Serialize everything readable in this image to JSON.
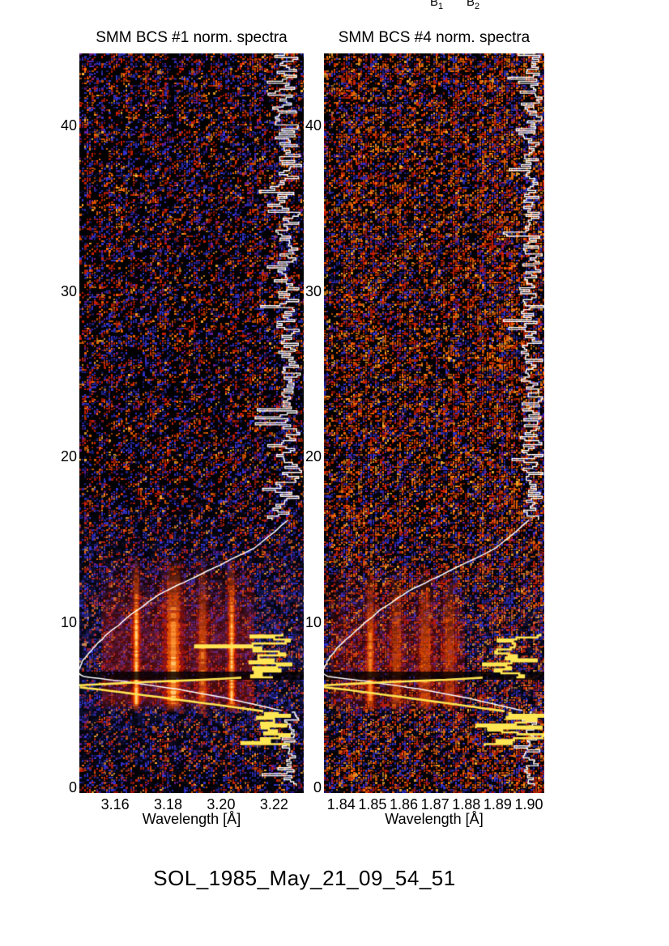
{
  "page": {
    "top_line_labels": [
      {
        "base": "B",
        "sub": "1"
      },
      {
        "base": "B",
        "sub": "2"
      }
    ],
    "footer_title": "SOL_1985_May_21_09_54_51"
  },
  "colors": {
    "page_bg": "#ffffff",
    "text": "#000000",
    "noise_red": "#d42000",
    "noise_orange": "#ff6a00",
    "noise_bright": "#ffb030",
    "noise_blue": "#3535d8",
    "noise_dim_blue": "#1a1a70",
    "noise_purple": "#7a1c9c",
    "haze_blue": "#4444e0",
    "burst_glow": "#c01400",
    "burst_mid": "#ff6a00",
    "burst_core": "#ffd27f",
    "overlay_white": "#ffffff",
    "overlay_yellow": "#ffe653"
  },
  "chart_data": [
    {
      "type": "heatmap",
      "title": "SMM BCS #1 norm. spectra",
      "xlabel": "Wavelength [Å]",
      "x_range": [
        3.1465,
        3.2312
      ],
      "x_ticks": [
        "3.16",
        "3.18",
        "3.20",
        "3.22"
      ],
      "x_tick_values": [
        3.16,
        3.18,
        3.2,
        3.22
      ],
      "y_ticks": [
        "0",
        "10",
        "20",
        "30",
        "40"
      ],
      "y_tick_values": [
        0,
        10,
        20,
        30,
        40
      ],
      "y_range": [
        0,
        44.4
      ],
      "grid": false,
      "legend": "none",
      "noise": {
        "seed": 7,
        "density": 0.48,
        "weights": [
          0.3,
          0.16,
          0.05,
          0.33,
          0.1,
          0.06
        ]
      },
      "blue_haze": {
        "center_t": 8.5,
        "sigma": 4.5,
        "max_alpha": 0.3
      },
      "burst": {
        "t_start": 4.6,
        "t_full": 5.4,
        "t_fade_start": 9.8,
        "t_end": 14.2,
        "strength": 1.0,
        "glow_range_frac": [
          0.1,
          0.78
        ],
        "lines": [
          {
            "wavelength": 3.168,
            "strength": 1.0,
            "width_frac": 0.025
          },
          {
            "wavelength": 3.182,
            "strength": 0.78,
            "width_frac": 0.06
          },
          {
            "wavelength": 3.193,
            "strength": 0.5,
            "width_frac": 0.035
          },
          {
            "wavelength": 3.204,
            "strength": 0.95,
            "width_frac": 0.026
          }
        ]
      },
      "dark_band": {
        "t_start": 6.55,
        "t_end": 7.05
      },
      "overlays": {
        "white_lightcurve": {
          "baseline_frac": 0.93,
          "top_jag": {
            "t_from": 44.4,
            "t_to": 16.2,
            "amp": 0.065
          },
          "decay_points": [
            [
              16.2,
              0.93
            ],
            [
              14.5,
              0.78
            ],
            [
              12.8,
              0.52
            ],
            [
              11.9,
              0.38
            ],
            [
              10.8,
              0.26
            ],
            [
              9.6,
              0.15
            ],
            [
              8.6,
              0.07
            ],
            [
              7.9,
              0.025
            ],
            [
              7.3,
              0.0
            ]
          ],
          "rise_points": [
            [
              6.75,
              0.02
            ],
            [
              6.45,
              0.2
            ],
            [
              6.0,
              0.43
            ],
            [
              5.45,
              0.65
            ],
            [
              5.0,
              0.8
            ],
            [
              4.7,
              0.9
            ]
          ],
          "bottom_jag": {
            "t_from": 4.6,
            "t_to": 0.15,
            "amp": 0.05
          }
        },
        "yellow_curve": {
          "lower_jag": {
            "t_from": 2.55,
            "t_to": 4.55,
            "center_frac": 0.88,
            "amp": 0.14
          },
          "up_diagonal": [
            [
              4.65,
              0.82
            ],
            [
              5.15,
              0.55
            ],
            [
              5.6,
              0.3
            ],
            [
              5.95,
              0.1
            ],
            [
              6.1,
              0.0
            ]
          ],
          "return_diagonal": [
            [
              6.22,
              0.0
            ],
            [
              6.42,
              0.3
            ],
            [
              6.55,
              0.55
            ],
            [
              6.68,
              0.72
            ]
          ],
          "upper_jag": {
            "t_from": 6.7,
            "t_to": 9.35,
            "center_frac": 0.85,
            "amp": 0.15
          }
        }
      }
    },
    {
      "type": "heatmap",
      "title": "SMM BCS #4 norm. spectra",
      "xlabel": "Wavelength [Å]",
      "x_range": [
        1.8345,
        1.9049
      ],
      "x_ticks": [
        "1.84",
        "1.85",
        "1.86",
        "1.87",
        "1.88",
        "1.89",
        "1.90"
      ],
      "x_tick_values": [
        1.84,
        1.85,
        1.86,
        1.87,
        1.88,
        1.89,
        1.9
      ],
      "y_ticks": [
        "0",
        "10",
        "20",
        "30",
        "40"
      ],
      "y_tick_values": [
        0,
        10,
        20,
        30,
        40
      ],
      "y_range": [
        0,
        44.4
      ],
      "grid": false,
      "legend": "none",
      "noise": {
        "seed": 13,
        "density": 0.68,
        "weights": [
          0.3,
          0.28,
          0.08,
          0.22,
          0.07,
          0.05
        ]
      },
      "blue_haze": {
        "center_t": 8.5,
        "sigma": 4.0,
        "max_alpha": 0.18
      },
      "burst": {
        "t_start": 4.6,
        "t_full": 5.4,
        "t_fade_start": 9.2,
        "t_end": 13.5,
        "strength": 0.78,
        "glow_range_frac": [
          0.03,
          0.64
        ],
        "lines": [
          {
            "wavelength": 1.8493,
            "strength": 0.9,
            "width_frac": 0.03
          },
          {
            "wavelength": 1.8577,
            "strength": 0.55,
            "width_frac": 0.045
          },
          {
            "wavelength": 1.8669,
            "strength": 0.6,
            "width_frac": 0.05
          },
          {
            "wavelength": 1.8746,
            "strength": 0.5,
            "width_frac": 0.045
          }
        ]
      },
      "dark_band": {
        "t_start": 6.55,
        "t_end": 7.05
      },
      "overlays": {
        "white_lightcurve": {
          "baseline_frac": 0.94,
          "top_jag": {
            "t_from": 44.4,
            "t_to": 16.2,
            "amp": 0.06
          },
          "decay_points": [
            [
              16.2,
              0.93
            ],
            [
              14.5,
              0.78
            ],
            [
              12.8,
              0.52
            ],
            [
              11.9,
              0.38
            ],
            [
              10.8,
              0.26
            ],
            [
              9.6,
              0.15
            ],
            [
              8.6,
              0.07
            ],
            [
              7.9,
              0.025
            ],
            [
              7.3,
              0.0
            ]
          ],
          "rise_points": [
            [
              6.75,
              0.02
            ],
            [
              6.45,
              0.2
            ],
            [
              6.0,
              0.43
            ],
            [
              5.45,
              0.65
            ],
            [
              5.0,
              0.8
            ],
            [
              4.7,
              0.9
            ]
          ],
          "bottom_jag": {
            "t_from": 4.6,
            "t_to": 0.15,
            "amp": 0.05
          }
        },
        "yellow_curve": {
          "lower_jag": {
            "t_from": 2.55,
            "t_to": 4.55,
            "center_frac": 0.88,
            "amp": 0.14
          },
          "up_diagonal": [
            [
              4.65,
              0.82
            ],
            [
              5.15,
              0.55
            ],
            [
              5.6,
              0.3
            ],
            [
              5.95,
              0.1
            ],
            [
              6.1,
              0.0
            ]
          ],
          "return_diagonal": [
            [
              6.22,
              0.0
            ],
            [
              6.42,
              0.3
            ],
            [
              6.55,
              0.55
            ],
            [
              6.68,
              0.72
            ]
          ],
          "upper_jag": {
            "t_from": 6.7,
            "t_to": 9.35,
            "center_frac": 0.86,
            "amp": 0.16
          }
        }
      }
    }
  ]
}
